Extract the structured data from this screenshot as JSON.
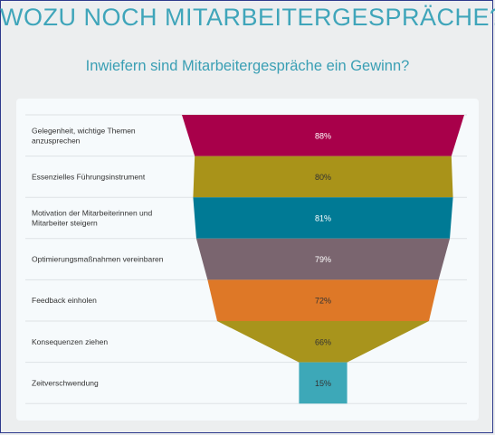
{
  "header": {
    "title": "WOZU NOCH MITARBEITERGESPRÄCHE?",
    "subtitle": "Inwiefern sind Mitarbeitergespräche ein Gewinn?"
  },
  "chart_data": {
    "type": "funnel",
    "title": "Inwiefern sind Mitarbeitergespräche ein Gewinn?",
    "categories": [
      [
        "Gelegenheit, wichtige Themen",
        "anzusprechen"
      ],
      [
        "Essenzielles Führungsinstrument"
      ],
      [
        "Motivation der Mitarbeiterinnen und",
        "Mitarbeiter steigern"
      ],
      [
        "Optimierungsmaßnahmen vereinbaren"
      ],
      [
        "Feedback einholen"
      ],
      [
        "Konsequenzen ziehen"
      ],
      [
        "Zeitverschwendung"
      ]
    ],
    "values": [
      88,
      80,
      81,
      79,
      72,
      66,
      15
    ],
    "value_labels": [
      "88%",
      "80%",
      "81%",
      "79%",
      "72%",
      "66%",
      "15%"
    ],
    "colors": [
      "#a8004a",
      "#a99319",
      "#007a95",
      "#7a656f",
      "#de7827",
      "#a8941c",
      "#3da8b8"
    ],
    "label_colors": [
      "#ffffff",
      "#333333",
      "#ffffff",
      "#ffffff",
      "#333333",
      "#333333",
      "#333333"
    ],
    "xlim": [
      0,
      88
    ]
  }
}
